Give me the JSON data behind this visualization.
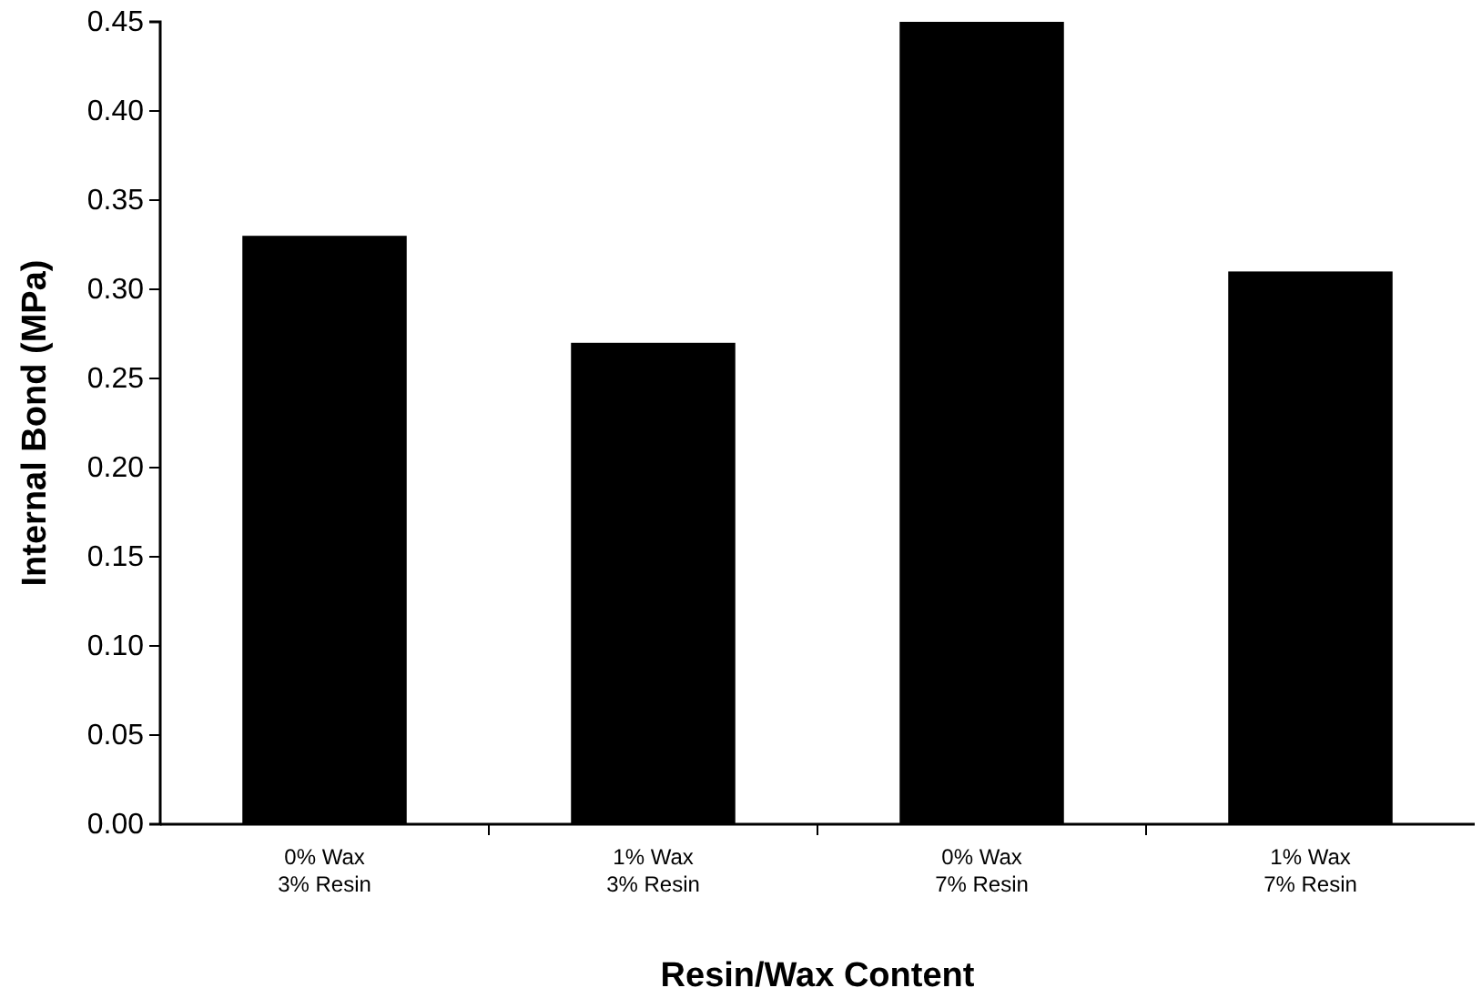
{
  "chart_data": {
    "type": "bar",
    "xlabel": "Resin/Wax Content",
    "ylabel": "Internal Bond (MPa)",
    "categories": [
      "0% Wax\n3% Resin",
      "1% Wax\n3% Resin",
      "0% Wax\n7% Resin",
      "1% Wax\n7% Resin"
    ],
    "values": [
      0.33,
      0.27,
      0.45,
      0.31
    ],
    "color": "#000000",
    "ylim": [
      0,
      0.45
    ],
    "yticks": [
      {
        "value": 0,
        "label": "0.00"
      },
      {
        "value": 0.05,
        "label": "0.05"
      },
      {
        "value": 0.1,
        "label": "0.10"
      },
      {
        "value": 0.15,
        "label": "0.15"
      },
      {
        "value": 0.2,
        "label": "0.20"
      },
      {
        "value": 0.25,
        "label": "0.25"
      },
      {
        "value": 0.3,
        "label": "0.30"
      },
      {
        "value": 0.35,
        "label": "0.35"
      },
      {
        "value": 0.4,
        "label": "0.40"
      },
      {
        "value": 0.45,
        "label": "0.45"
      }
    ],
    "grid": false
  }
}
